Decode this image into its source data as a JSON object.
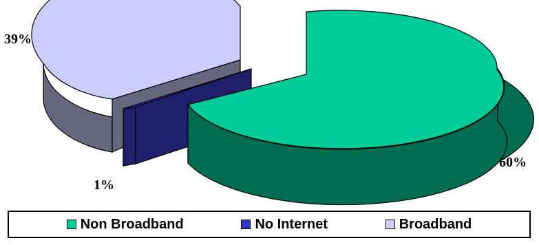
{
  "chart_data": {
    "type": "pie",
    "style": "3d-exploded",
    "slices": [
      {
        "name": "Non Broadband",
        "value": 60,
        "label": "60%",
        "color": "#00CC99",
        "side_color": "#006C50"
      },
      {
        "name": "No Internet",
        "value": 1,
        "label": "1%",
        "color": "#3333CC",
        "side_color": "#1F1F6B"
      },
      {
        "name": "Broadband",
        "value": 39,
        "label": "39%",
        "color": "#CCCCFF",
        "side_color": "#66667F"
      }
    ],
    "legend_position": "bottom",
    "legend": [
      "Non Broadband",
      "No Internet",
      "Broadband"
    ]
  }
}
